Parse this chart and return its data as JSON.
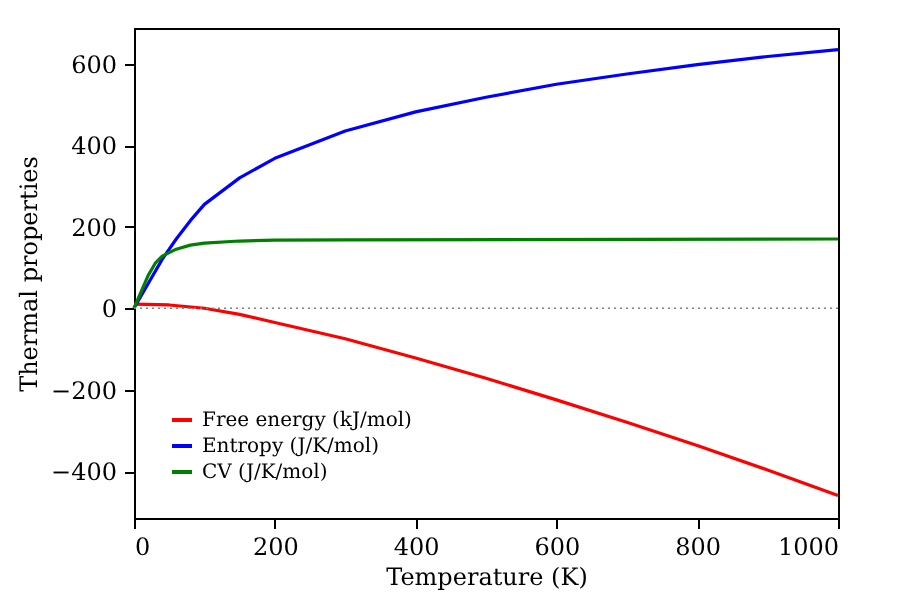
{
  "chart_data": {
    "type": "line",
    "xlabel": "Temperature (K)",
    "ylabel": "Thermal properties",
    "xlim": [
      0,
      1000
    ],
    "xticks": [
      0,
      200,
      400,
      600,
      800,
      1000
    ],
    "ylim": [
      -515,
      688
    ],
    "yticks": [
      -400,
      -200,
      0,
      200,
      400,
      600
    ],
    "grid": false,
    "legend": "bottom left",
    "line_style": "solid",
    "ref_lines": [
      {
        "axis": "y",
        "value": 0,
        "color": "#808080",
        "line_style": "dotted"
      }
    ],
    "series": [
      {
        "name": "Free energy (kJ/mol)",
        "color": "#ff0000",
        "x": [
          0,
          50,
          100,
          150,
          200,
          300,
          400,
          500,
          600,
          700,
          800,
          900,
          1000
        ],
        "values": [
          10,
          8,
          0,
          -15,
          -35,
          -75,
          -122,
          -172,
          -225,
          -280,
          -337,
          -397,
          -460
        ]
      },
      {
        "name": "Entropy (J/K/mol)",
        "color": "#0000ff",
        "x": [
          0,
          20,
          40,
          60,
          80,
          100,
          150,
          200,
          300,
          400,
          500,
          600,
          700,
          800,
          900,
          1000
        ],
        "values": [
          0,
          60,
          120,
          170,
          215,
          255,
          320,
          368,
          435,
          482,
          518,
          550,
          575,
          598,
          618,
          635
        ]
      },
      {
        "name": "CV (J/K/mol)",
        "color": "#008000",
        "x": [
          0,
          10,
          20,
          30,
          40,
          60,
          80,
          100,
          150,
          200,
          300,
          1000
        ],
        "values": [
          0,
          40,
          80,
          110,
          128,
          145,
          155,
          160,
          165,
          167,
          168,
          170
        ]
      }
    ]
  }
}
